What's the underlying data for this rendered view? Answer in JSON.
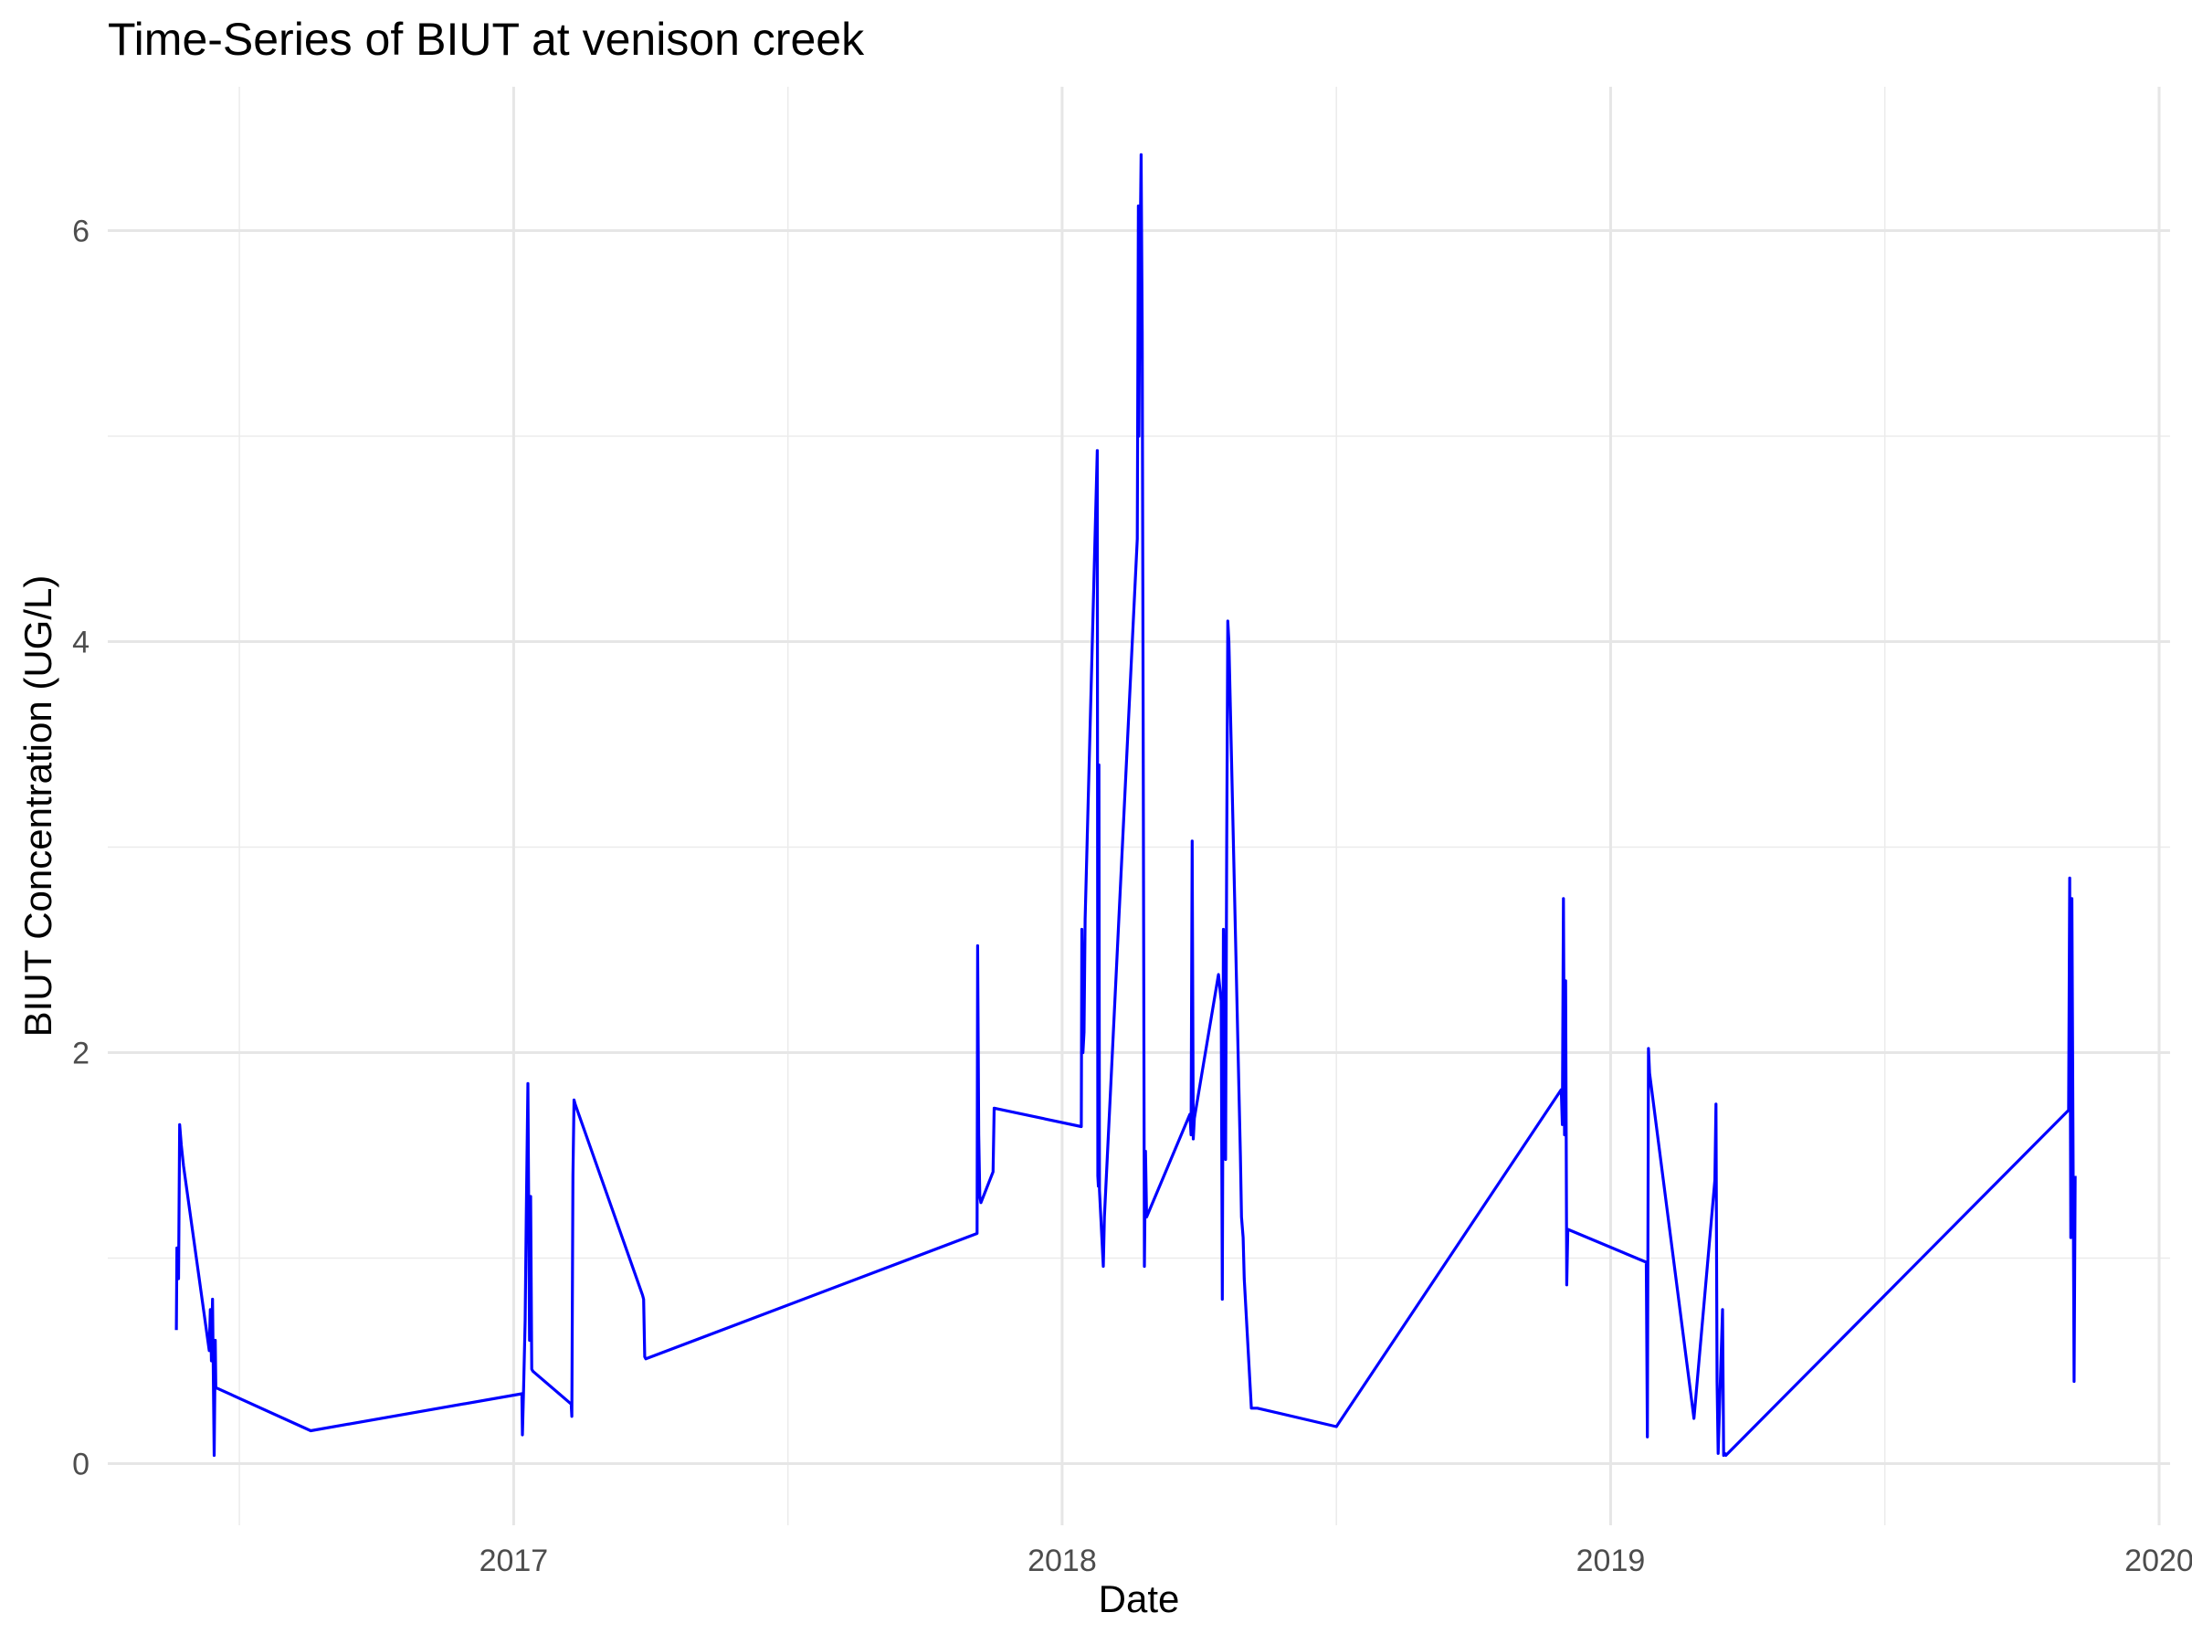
{
  "chart_data": {
    "type": "line",
    "title": "Time-Series of BIUT at venison creek",
    "xlabel": "Date",
    "ylabel": "BIUT Concentration (UG/L)",
    "x_ticks": [
      "2017",
      "2018",
      "2019",
      "2020"
    ],
    "y_ticks": [
      "0",
      "2",
      "4",
      "6"
    ],
    "xlim": [
      2016.26,
      2020.02
    ],
    "ylim": [
      -0.3,
      6.7
    ],
    "grid": true,
    "legend": "none",
    "line_color": "#0000ff",
    "series": [
      {
        "x": [
          2016.385,
          2016.386,
          2016.389,
          2016.391,
          2016.394,
          2016.396,
          2016.398,
          2016.445,
          2016.447,
          2016.449,
          2016.451,
          2016.454,
          2016.456,
          2016.457,
          2016.63,
          2017.015,
          2017.016,
          2017.018,
          2017.021,
          2017.023,
          2017.026,
          2017.029,
          2017.031,
          2017.033,
          2017.035,
          2017.105,
          2017.106,
          2017.108,
          2017.11,
          2017.112,
          2017.235,
          2017.237,
          2017.239,
          2017.241,
          2017.845,
          2017.846,
          2017.848,
          2017.85,
          2017.852,
          2017.874,
          2017.876,
          2018.035,
          2018.036,
          2018.038,
          2018.04,
          2018.042,
          2018.064,
          2018.065,
          2018.066,
          2018.067,
          2018.068,
          2018.075,
          2018.077,
          2018.137,
          2018.139,
          2018.14,
          2018.141,
          2018.143,
          2018.144,
          2018.146,
          2018.148,
          2018.15,
          2018.152,
          2018.154,
          2018.233,
          2018.235,
          2018.237,
          2018.239,
          2018.241,
          2018.285,
          2018.29,
          2018.292,
          2018.294,
          2018.296,
          2018.298,
          2018.3,
          2018.302,
          2018.304,
          2018.325,
          2018.327,
          2018.33,
          2018.332,
          2018.345,
          2018.352,
          2018.356,
          2018.5,
          2018.91,
          2018.912,
          2018.914,
          2018.916,
          2018.918,
          2018.92,
          2018.922,
          2019.065,
          2019.067,
          2019.069,
          2019.071,
          2019.152,
          2019.19,
          2019.192,
          2019.194,
          2019.196,
          2019.204,
          2019.206,
          2019.208,
          2019.21,
          2019.835,
          2019.837,
          2019.839,
          2019.841,
          2019.843,
          2019.845,
          2019.847
        ],
        "y": [
          0.65,
          1.05,
          0.9,
          1.65,
          1.55,
          1.5,
          1.45,
          0.55,
          0.75,
          0.5,
          0.8,
          0.04,
          0.6,
          0.37,
          0.16,
          0.34,
          0.14,
          0.35,
          0.7,
          1.2,
          1.85,
          0.6,
          1.3,
          0.46,
          0.45,
          0.29,
          0.23,
          1.4,
          1.77,
          1.75,
          0.82,
          0.8,
          0.52,
          0.51,
          1.12,
          2.52,
          1.6,
          1.3,
          1.27,
          1.42,
          1.73,
          1.64,
          2.6,
          2.0,
          2.1,
          2.65,
          4.93,
          1.4,
          1.35,
          3.4,
          1.33,
          0.96,
          1.2,
          4.5,
          6.12,
          5.0,
          5.5,
          6.12,
          6.37,
          5.5,
          3.3,
          0.96,
          1.52,
          1.2,
          1.7,
          1.6,
          3.03,
          1.58,
          1.68,
          2.38,
          2.25,
          0.8,
          2.6,
          1.9,
          1.48,
          3.0,
          4.1,
          4.0,
          1.5,
          1.2,
          1.1,
          0.9,
          0.27,
          0.27,
          0.27,
          0.18,
          1.82,
          1.65,
          2.75,
          1.6,
          2.35,
          0.87,
          1.14,
          0.98,
          0.13,
          2.02,
          1.9,
          0.22,
          1.38,
          1.75,
          0.4,
          0.05,
          0.75,
          0.04,
          0.05,
          0.04,
          1.72,
          2.85,
          1.1,
          2.75,
          1.6,
          0.4,
          1.4
        ]
      }
    ]
  }
}
